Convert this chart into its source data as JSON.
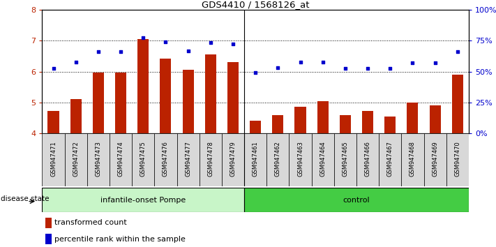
{
  "title": "GDS4410 / 1568126_at",
  "samples": [
    "GSM947471",
    "GSM947472",
    "GSM947473",
    "GSM947474",
    "GSM947475",
    "GSM947476",
    "GSM947477",
    "GSM947478",
    "GSM947479",
    "GSM947461",
    "GSM947462",
    "GSM947463",
    "GSM947464",
    "GSM947465",
    "GSM947466",
    "GSM947467",
    "GSM947468",
    "GSM947469",
    "GSM947470"
  ],
  "bar_values": [
    4.72,
    5.1,
    5.97,
    5.97,
    7.05,
    6.42,
    6.06,
    6.55,
    6.3,
    4.42,
    4.6,
    4.87,
    5.05,
    4.6,
    4.72,
    4.55,
    5.0,
    4.9,
    5.9
  ],
  "dot_values": [
    6.1,
    6.3,
    6.65,
    6.65,
    7.1,
    6.97,
    6.68,
    6.95,
    6.9,
    5.98,
    6.12,
    6.3,
    6.3,
    6.1,
    6.1,
    6.1,
    6.28,
    6.28,
    6.65
  ],
  "group_labels": [
    "infantile-onset Pompe",
    "control"
  ],
  "group_counts": [
    9,
    10
  ],
  "light_green": "#c8f5c8",
  "dark_green": "#44cc44",
  "bar_color": "#BB2200",
  "dot_color": "#0000CC",
  "ylim_left": [
    4,
    8
  ],
  "ylim_right": [
    0,
    100
  ],
  "yticks_left": [
    4,
    5,
    6,
    7,
    8
  ],
  "yticks_right": [
    0,
    25,
    50,
    75,
    100
  ],
  "grid_lines": [
    5,
    6,
    7
  ],
  "legend_bar_label": "transformed count",
  "legend_dot_label": "percentile rank within the sample",
  "disease_state_label": "disease state"
}
